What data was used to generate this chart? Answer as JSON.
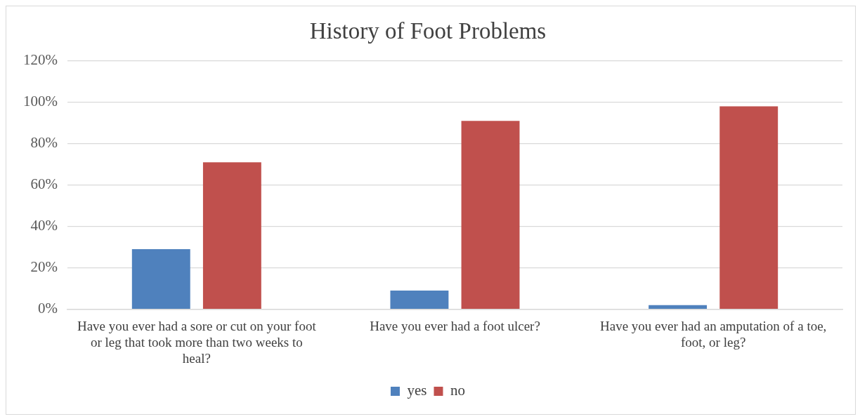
{
  "chart_data": {
    "type": "bar",
    "title": "History of Foot Problems",
    "categories": [
      "Have you ever had a sore or cut on your foot or leg that took more than two weeks to heal?",
      "Have you ever had a foot ulcer?",
      "Have you ever had an amputation of a toe, foot, or leg?"
    ],
    "series": [
      {
        "name": "yes",
        "color": "#4f81bd",
        "values": [
          29,
          9,
          2
        ]
      },
      {
        "name": "no",
        "color": "#c0504d",
        "values": [
          71,
          91,
          98
        ]
      }
    ],
    "ylim": [
      0,
      120
    ],
    "yticks": [
      {
        "value": 0,
        "label": "0%"
      },
      {
        "value": 20,
        "label": "20%"
      },
      {
        "value": 40,
        "label": "40%"
      },
      {
        "value": 60,
        "label": "60%"
      },
      {
        "value": 80,
        "label": "80%"
      },
      {
        "value": 100,
        "label": "100%"
      },
      {
        "value": 120,
        "label": "120%"
      }
    ],
    "grid": "y",
    "legend": "bottom"
  }
}
